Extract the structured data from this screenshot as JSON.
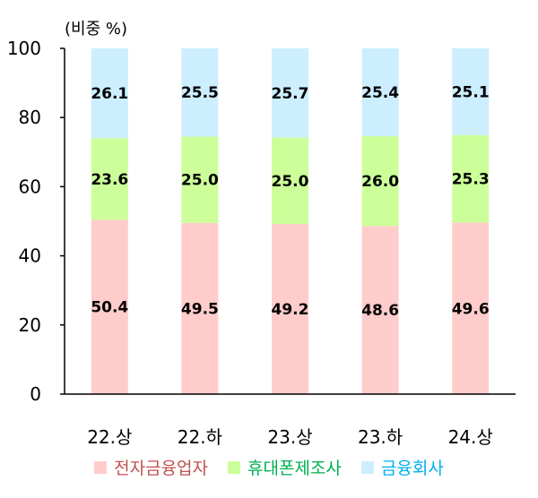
{
  "unit_label": "(비중 %)",
  "chart_data": {
    "type": "bar",
    "stacked": true,
    "percent": true,
    "categories": [
      "22.상",
      "22.하",
      "23.상",
      "23.하",
      "24.상"
    ],
    "ylim": [
      0,
      100
    ],
    "yticks": [
      0,
      20,
      40,
      60,
      80,
      100
    ],
    "series": [
      {
        "name": "전자금융업자",
        "color": "#ffcccc",
        "text_color": "#c0504d",
        "values": [
          50.4,
          49.5,
          49.2,
          48.6,
          49.6
        ],
        "labels": [
          "50.4",
          "49.5",
          "49.2",
          "48.6",
          "49.6"
        ]
      },
      {
        "name": "휴대폰제조사",
        "color": "#ccff99",
        "text_color": "#00b050",
        "values": [
          23.6,
          25.0,
          25.0,
          26.0,
          25.3
        ],
        "labels": [
          "23.6",
          "25.0",
          "25.0",
          "26.0",
          "25.3"
        ]
      },
      {
        "name": "금융회사",
        "color": "#cceeff",
        "text_color": "#00b0f0",
        "values": [
          26.1,
          25.5,
          25.7,
          25.4,
          25.1
        ],
        "labels": [
          "26.1",
          "25.5",
          "25.7",
          "25.4",
          "25.1"
        ]
      }
    ],
    "grid": false,
    "legend_position": "bottom"
  }
}
